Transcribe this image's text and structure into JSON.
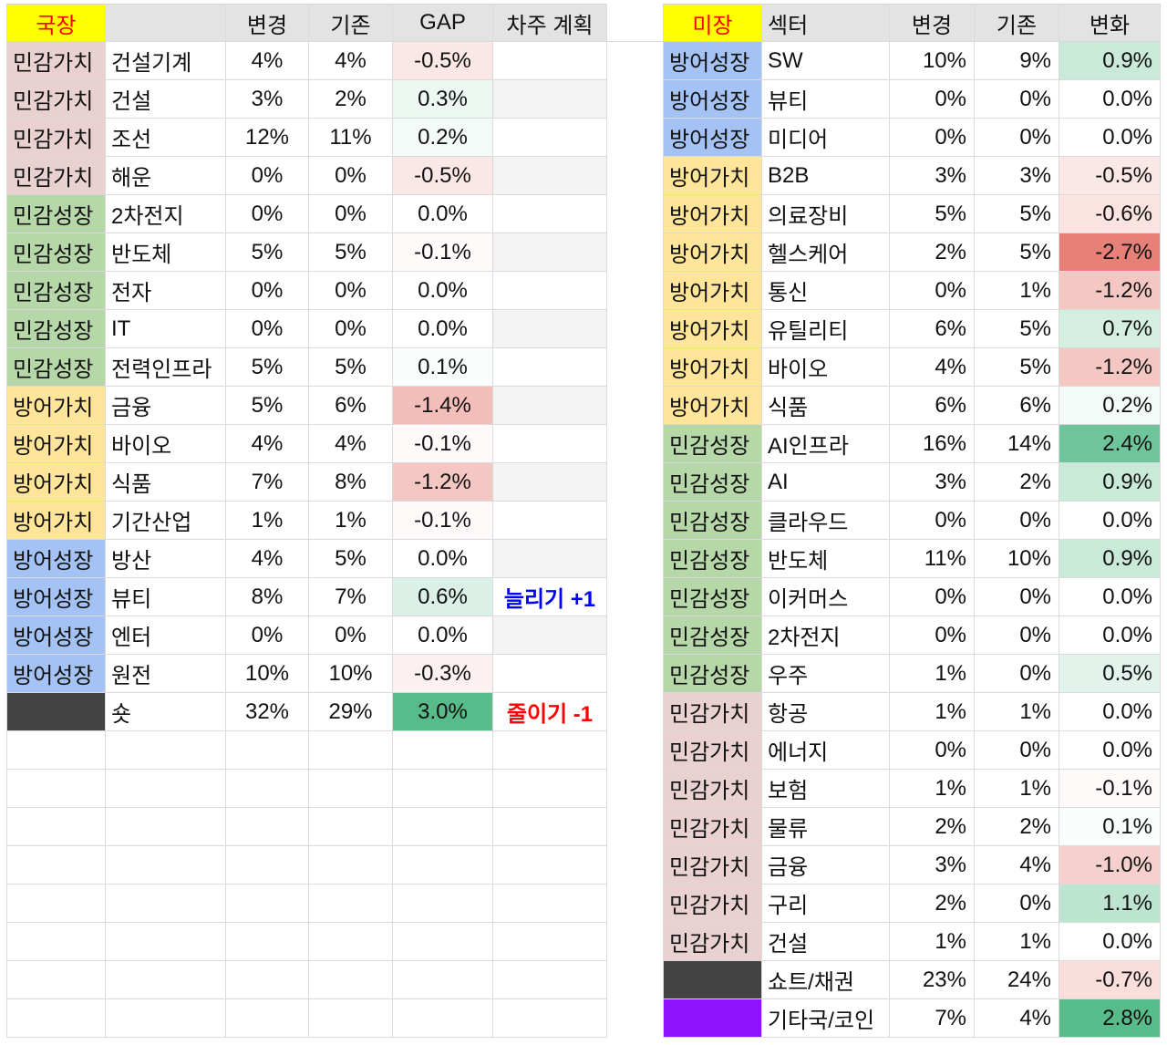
{
  "group_colors": {
    "민감가치": "#ead1d1",
    "민감성장": "#b6d7a8",
    "방어가치": "#ffe599",
    "방어성장": "#a4c2f4"
  },
  "gain_color": "#57bb8a",
  "loss_color": "#e67c73",
  "left": {
    "header": {
      "title": "국장",
      "new": "변경",
      "old": "기존",
      "gap": "GAP",
      "plan": "차주 계획"
    },
    "title_color": "#ff0000",
    "title_fill": "#ffff00",
    "rows": [
      {
        "group": "민감가치",
        "sector": "건설기계",
        "new": "4%",
        "old": "4%",
        "gap": "-0.5%"
      },
      {
        "group": "민감가치",
        "sector": "건설",
        "new": "3%",
        "old": "2%",
        "gap": "0.3%"
      },
      {
        "group": "민감가치",
        "sector": "조선",
        "new": "12%",
        "old": "11%",
        "gap": "0.2%"
      },
      {
        "group": "민감가치",
        "sector": "해운",
        "new": "0%",
        "old": "0%",
        "gap": "-0.5%"
      },
      {
        "group": "민감성장",
        "sector": "2차전지",
        "new": "0%",
        "old": "0%",
        "gap": "0.0%"
      },
      {
        "group": "민감성장",
        "sector": "반도체",
        "new": "5%",
        "old": "5%",
        "gap": "-0.1%"
      },
      {
        "group": "민감성장",
        "sector": "전자",
        "new": "0%",
        "old": "0%",
        "gap": "0.0%"
      },
      {
        "group": "민감성장",
        "sector": "IT",
        "new": "0%",
        "old": "0%",
        "gap": "0.0%"
      },
      {
        "group": "민감성장",
        "sector": "전력인프라",
        "new": "5%",
        "old": "5%",
        "gap": "0.1%"
      },
      {
        "group": "방어가치",
        "sector": "금융",
        "new": "5%",
        "old": "6%",
        "gap": "-1.4%"
      },
      {
        "group": "방어가치",
        "sector": "바이오",
        "new": "4%",
        "old": "4%",
        "gap": "-0.1%"
      },
      {
        "group": "방어가치",
        "sector": "식품",
        "new": "7%",
        "old": "8%",
        "gap": "-1.2%"
      },
      {
        "group": "방어가치",
        "sector": "기간산업",
        "new": "1%",
        "old": "1%",
        "gap": "-0.1%"
      },
      {
        "group": "방어성장",
        "sector": "방산",
        "new": "4%",
        "old": "5%",
        "gap": "0.0%"
      },
      {
        "group": "방어성장",
        "sector": "뷰티",
        "new": "8%",
        "old": "7%",
        "gap": "0.6%",
        "plan": "늘리기 +1",
        "plan_color": "#0000ff"
      },
      {
        "group": "방어성장",
        "sector": "엔터",
        "new": "0%",
        "old": "0%",
        "gap": "0.0%"
      },
      {
        "group": "방어성장",
        "sector": "원전",
        "new": "10%",
        "old": "10%",
        "gap": "-0.3%"
      },
      {
        "group": null,
        "color": "#434343",
        "sector": "숏",
        "new": "32%",
        "old": "29%",
        "gap": "3.0%",
        "plan": "줄이기 -1",
        "plan_color": "#ff0000"
      }
    ]
  },
  "right": {
    "header": {
      "title": "미장",
      "sector": "섹터",
      "new": "변경",
      "old": "기존",
      "gap": "변화"
    },
    "title_color": "#ff0000",
    "title_fill": "#ffff00",
    "rows": [
      {
        "group": "방어성장",
        "sector": "SW",
        "new": "10%",
        "old": "9%",
        "gap": "0.9%"
      },
      {
        "group": "방어성장",
        "sector": "뷰티",
        "new": "0%",
        "old": "0%",
        "gap": "0.0%"
      },
      {
        "group": "방어성장",
        "sector": "미디어",
        "new": "0%",
        "old": "0%",
        "gap": "0.0%"
      },
      {
        "group": "방어가치",
        "sector": "B2B",
        "new": "3%",
        "old": "3%",
        "gap": "-0.5%"
      },
      {
        "group": "방어가치",
        "sector": "의료장비",
        "new": "5%",
        "old": "5%",
        "gap": "-0.6%"
      },
      {
        "group": "방어가치",
        "sector": "헬스케어",
        "new": "2%",
        "old": "5%",
        "gap": "-2.7%"
      },
      {
        "group": "방어가치",
        "sector": "통신",
        "new": "0%",
        "old": "1%",
        "gap": "-1.2%"
      },
      {
        "group": "방어가치",
        "sector": "유틸리티",
        "new": "6%",
        "old": "5%",
        "gap": "0.7%"
      },
      {
        "group": "방어가치",
        "sector": "바이오",
        "new": "4%",
        "old": "5%",
        "gap": "-1.2%"
      },
      {
        "group": "방어가치",
        "sector": "식품",
        "new": "6%",
        "old": "6%",
        "gap": "0.2%"
      },
      {
        "group": "민감성장",
        "sector": "AI인프라",
        "new": "16%",
        "old": "14%",
        "gap": "2.4%"
      },
      {
        "group": "민감성장",
        "sector": "AI",
        "new": "3%",
        "old": "2%",
        "gap": "0.9%"
      },
      {
        "group": "민감성장",
        "sector": "클라우드",
        "new": "0%",
        "old": "0%",
        "gap": "0.0%"
      },
      {
        "group": "민감성장",
        "sector": "반도체",
        "new": "11%",
        "old": "10%",
        "gap": "0.9%"
      },
      {
        "group": "민감성장",
        "sector": "이커머스",
        "new": "0%",
        "old": "0%",
        "gap": "0.0%"
      },
      {
        "group": "민감성장",
        "sector": "2차전지",
        "new": "0%",
        "old": "0%",
        "gap": "0.0%"
      },
      {
        "group": "민감성장",
        "sector": "우주",
        "new": "1%",
        "old": "0%",
        "gap": "0.5%"
      },
      {
        "group": "민감가치",
        "sector": "항공",
        "new": "1%",
        "old": "1%",
        "gap": "0.0%"
      },
      {
        "group": "민감가치",
        "sector": "에너지",
        "new": "0%",
        "old": "0%",
        "gap": "0.0%"
      },
      {
        "group": "민감가치",
        "sector": "보험",
        "new": "1%",
        "old": "1%",
        "gap": "-0.1%"
      },
      {
        "group": "민감가치",
        "sector": "물류",
        "new": "2%",
        "old": "2%",
        "gap": "0.1%"
      },
      {
        "group": "민감가치",
        "sector": "금융",
        "new": "3%",
        "old": "4%",
        "gap": "-1.0%"
      },
      {
        "group": "민감가치",
        "sector": "구리",
        "new": "2%",
        "old": "0%",
        "gap": "1.1%"
      },
      {
        "group": "민감가치",
        "sector": "건설",
        "new": "1%",
        "old": "1%",
        "gap": "0.0%"
      },
      {
        "group": null,
        "color": "#434343",
        "sector": "쇼트/채권",
        "new": "23%",
        "old": "24%",
        "gap": "-0.7%"
      },
      {
        "group": null,
        "color": "#8f14fb",
        "sector": "기타국/코인",
        "new": "7%",
        "old": "4%",
        "gap": "2.8%"
      }
    ]
  }
}
